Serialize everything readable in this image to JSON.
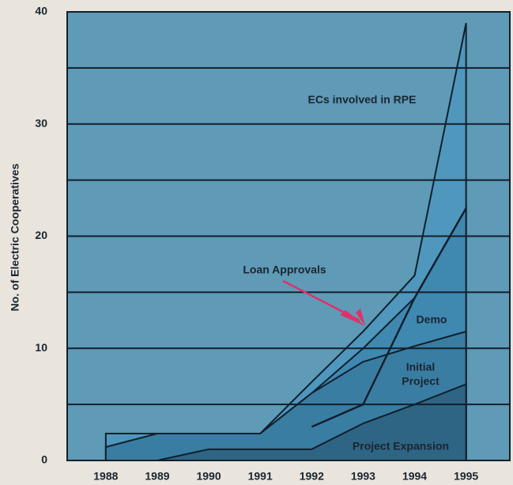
{
  "chart_data": {
    "type": "area",
    "y_label": "No. of Electric Cooperatives",
    "x": [
      1988,
      1989,
      1990,
      1991,
      1992,
      1993,
      1994,
      1995
    ],
    "xlim": [
      1987.25,
      1995.85
    ],
    "xticks": [
      1988,
      1989,
      1990,
      1991,
      1992,
      1993,
      1994,
      1995
    ],
    "ylim": [
      0,
      40
    ],
    "yticks": [
      0,
      10,
      20,
      30,
      40
    ],
    "minor_yticks": [
      5,
      15,
      25,
      35
    ],
    "grid": true,
    "series": [
      {
        "name": "ECs involved in RPE",
        "style": "area",
        "color": "#4f97bd",
        "values": [
          2.4,
          2.4,
          2.4,
          2.4,
          7,
          11.5,
          16.5,
          39
        ]
      },
      {
        "name": "Demo",
        "style": "area",
        "color": "#3f88b0",
        "values": [
          null,
          null,
          null,
          2.4,
          6,
          10,
          14.5,
          22.5
        ]
      },
      {
        "name": "Initial Project",
        "style": "area",
        "color": "#3a7da3",
        "values": [
          1.2,
          2.4,
          2.4,
          2.4,
          6,
          8.8,
          10.2,
          11.5
        ]
      },
      {
        "name": "Project Expansion",
        "style": "area",
        "color": "#2f6584",
        "values": [
          0,
          0,
          1,
          1,
          1,
          3.3,
          5,
          6.8
        ]
      },
      {
        "name": "Loan Approvals",
        "style": "line",
        "color": "#10202c",
        "values": [
          null,
          null,
          null,
          null,
          3,
          5,
          14.5,
          22.5
        ]
      }
    ],
    "annotations": [
      {
        "lines": [
          "ECs involved in RPE"
        ]
      },
      {
        "lines": [
          "Loan Approvals"
        ]
      },
      {
        "lines": [
          "Demo"
        ]
      },
      {
        "lines": [
          "Initial",
          "Project"
        ]
      },
      {
        "lines": [
          "Project Expansion"
        ]
      }
    ]
  }
}
